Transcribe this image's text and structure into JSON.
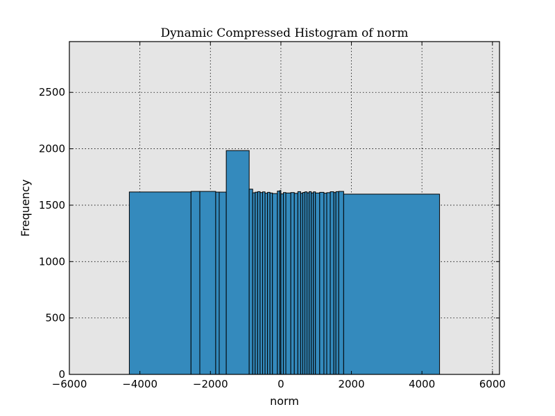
{
  "chart_data": {
    "type": "bar",
    "title": "Dynamic Compressed Histogram of norm",
    "xlabel": "norm",
    "ylabel": "Frequency",
    "xlim": [
      -6000,
      6200
    ],
    "ylim": [
      0,
      2950
    ],
    "xticks": [
      -6000,
      -4000,
      -2000,
      0,
      2000,
      4000,
      6000
    ],
    "xtick_labels": [
      "−6000",
      "−4000",
      "−2000",
      "0",
      "2000",
      "4000",
      "6000"
    ],
    "yticks": [
      0,
      500,
      1000,
      1500,
      2000,
      2500
    ],
    "ytick_labels": [
      "0",
      "500",
      "1000",
      "1500",
      "2000",
      "2500"
    ],
    "grid": true,
    "bar_color": "#348ABD",
    "background_color": "#E5E5E5",
    "bins": [
      {
        "left": -4300,
        "right": -2550,
        "value": 1617
      },
      {
        "left": -2550,
        "right": -2300,
        "value": 1622
      },
      {
        "left": -2300,
        "right": -1850,
        "value": 1622
      },
      {
        "left": -1850,
        "right": -1750,
        "value": 1616
      },
      {
        "left": -1750,
        "right": -1550,
        "value": 1616
      },
      {
        "left": -1550,
        "right": -900,
        "value": 1984
      },
      {
        "left": -900,
        "right": -800,
        "value": 1642
      },
      {
        "left": -800,
        "right": -730,
        "value": 1610
      },
      {
        "left": -730,
        "right": -660,
        "value": 1615
      },
      {
        "left": -660,
        "right": -590,
        "value": 1620
      },
      {
        "left": -590,
        "right": -520,
        "value": 1612
      },
      {
        "left": -520,
        "right": -450,
        "value": 1618
      },
      {
        "left": -450,
        "right": -380,
        "value": 1606
      },
      {
        "left": -380,
        "right": -310,
        "value": 1614
      },
      {
        "left": -310,
        "right": -240,
        "value": 1608
      },
      {
        "left": -240,
        "right": -100,
        "value": 1603
      },
      {
        "left": -100,
        "right": -30,
        "value": 1625
      },
      {
        "left": -30,
        "right": 0,
        "value": 1630
      },
      {
        "left": 0,
        "right": 70,
        "value": 1600
      },
      {
        "left": 70,
        "right": 140,
        "value": 1612
      },
      {
        "left": 140,
        "right": 280,
        "value": 1608
      },
      {
        "left": 280,
        "right": 380,
        "value": 1612
      },
      {
        "left": 380,
        "right": 480,
        "value": 1605
      },
      {
        "left": 480,
        "right": 560,
        "value": 1620
      },
      {
        "left": 560,
        "right": 620,
        "value": 1606
      },
      {
        "left": 620,
        "right": 680,
        "value": 1613
      },
      {
        "left": 680,
        "right": 740,
        "value": 1618
      },
      {
        "left": 740,
        "right": 800,
        "value": 1610
      },
      {
        "left": 800,
        "right": 860,
        "value": 1620
      },
      {
        "left": 860,
        "right": 920,
        "value": 1609
      },
      {
        "left": 920,
        "right": 980,
        "value": 1618
      },
      {
        "left": 980,
        "right": 1100,
        "value": 1608
      },
      {
        "left": 1100,
        "right": 1220,
        "value": 1614
      },
      {
        "left": 1220,
        "right": 1300,
        "value": 1606
      },
      {
        "left": 1300,
        "right": 1400,
        "value": 1611
      },
      {
        "left": 1400,
        "right": 1500,
        "value": 1619
      },
      {
        "left": 1500,
        "right": 1560,
        "value": 1612
      },
      {
        "left": 1560,
        "right": 1640,
        "value": 1620
      },
      {
        "left": 1640,
        "right": 1780,
        "value": 1622
      },
      {
        "left": 1780,
        "right": 4500,
        "value": 1598
      }
    ]
  }
}
